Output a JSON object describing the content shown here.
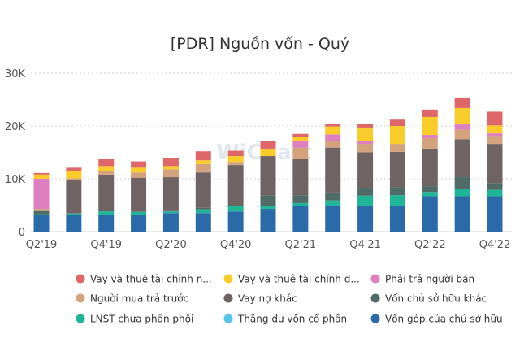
{
  "chart_data": {
    "type": "bar",
    "stacked": true,
    "title": "[PDR] Nguồn vốn - Quý",
    "watermark": "WiChart",
    "xlabel": "",
    "ylabel": "",
    "ylim": [
      0,
      30000
    ],
    "y_ticks": [
      0,
      10000,
      20000,
      30000
    ],
    "y_tick_labels": [
      "0",
      "10K",
      "20K",
      "30K"
    ],
    "grid": true,
    "legend_position": "bottom",
    "categories": [
      "Q2'19",
      "Q3'19",
      "Q4'19",
      "Q1'20",
      "Q2'20",
      "Q3'20",
      "Q4'20",
      "Q1'21",
      "Q2'21",
      "Q3'21",
      "Q4'21",
      "Q1'22",
      "Q2'22",
      "Q3'22",
      "Q4'22"
    ],
    "x_tick_labels": [
      "Q2'19",
      "Q4'19",
      "Q2'20",
      "Q4'20",
      "Q2'21",
      "Q4'21",
      "Q2'22",
      "Q4'22"
    ],
    "series": [
      {
        "name": "Vốn góp của chủ sở hữu",
        "color": "#2a6aa8",
        "values": [
          3200,
          3200,
          3200,
          3200,
          3500,
          3500,
          3800,
          4300,
          4900,
          4900,
          4900,
          4900,
          6700,
          6700,
          6700
        ]
      },
      {
        "name": "Thặng dư vốn cổ phần",
        "color": "#55c6e8",
        "values": [
          0,
          0,
          0,
          0,
          0,
          0,
          0,
          0,
          0,
          0,
          0,
          0,
          0,
          0,
          0
        ]
      },
      {
        "name": "LNST chưa phân phối",
        "color": "#1fb596",
        "values": [
          100,
          200,
          600,
          500,
          300,
          700,
          1000,
          600,
          500,
          1000,
          1900,
          2000,
          800,
          1400,
          1200
        ]
      },
      {
        "name": "Vốn chủ sở hữu khác",
        "color": "#4f6b67",
        "values": [
          600,
          100,
          200,
          100,
          100,
          300,
          200,
          2000,
          1500,
          1500,
          1500,
          1500,
          1100,
          2200,
          1300
        ]
      },
      {
        "name": "Vay nợ khác",
        "color": "#6f6363",
        "values": [
          0,
          6300,
          6800,
          6400,
          6400,
          6700,
          7600,
          7400,
          6800,
          8500,
          6700,
          6700,
          7100,
          7200,
          7400
        ]
      },
      {
        "name": "Người mua trả trước",
        "color": "#d4a27c",
        "values": [
          400,
          300,
          700,
          1000,
          1500,
          1600,
          600,
          0,
          2200,
          1300,
          1600,
          1500,
          2000,
          1800,
          1500
        ]
      },
      {
        "name": "Phải trả người bán",
        "color": "#de7fc0",
        "values": [
          5700,
          0,
          0,
          0,
          0,
          0,
          0,
          0,
          1200,
          1200,
          500,
          0,
          600,
          1000,
          500
        ]
      },
      {
        "name": "Vay và thuê tài chính dài hạn",
        "color": "#f8cd2a",
        "values": [
          800,
          1300,
          900,
          900,
          600,
          700,
          1100,
          1400,
          900,
          1500,
          2600,
          3400,
          3400,
          3100,
          1500
        ]
      },
      {
        "name": "Vay và thuê tài chính ngắn hạn",
        "color": "#e06767",
        "values": [
          300,
          700,
          1300,
          1200,
          1600,
          1700,
          1000,
          1400,
          500,
          500,
          700,
          1200,
          1400,
          2000,
          2600
        ]
      }
    ],
    "legend": [
      "Vay và thuê tài chính n...",
      "Vay và thuê tài chính d...",
      "Phải trả người bán",
      "Người mua trả trước",
      "Vay nợ khác",
      "Vốn chủ sở hữu khác",
      "LNST chưa phân phối",
      "Thặng dư vốn cổ phần",
      "Vốn góp của chủ sở hữu"
    ]
  }
}
